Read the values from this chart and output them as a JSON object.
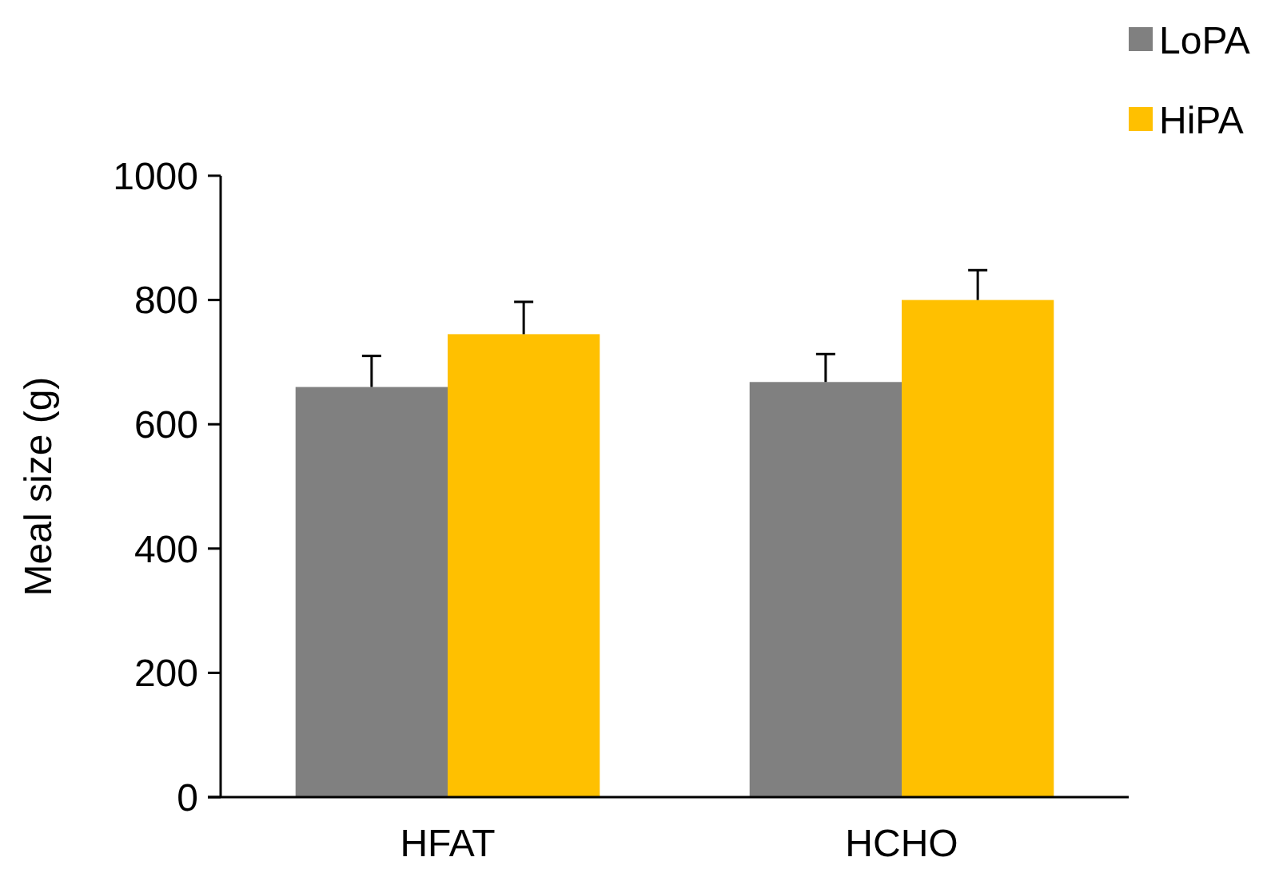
{
  "chart_data": {
    "type": "bar",
    "ylabel": "Meal size (g)",
    "categories": [
      "HFAT",
      "HCHO"
    ],
    "series": [
      {
        "name": "LoPA",
        "color": "#808080",
        "values": [
          660,
          668
        ],
        "errors": [
          50,
          45
        ]
      },
      {
        "name": "HiPA",
        "color": "#ffc000",
        "values": [
          745,
          800
        ],
        "errors": [
          52,
          48
        ]
      }
    ],
    "ylim": [
      0,
      1000
    ],
    "yticks": [
      0,
      200,
      400,
      600,
      800,
      1000
    ],
    "grid": false,
    "legend": "top right"
  }
}
